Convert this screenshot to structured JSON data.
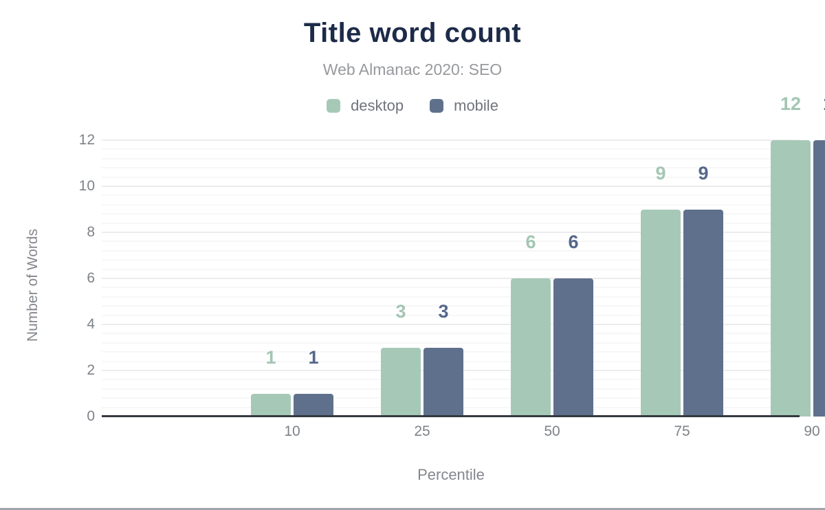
{
  "chart_data": {
    "type": "bar",
    "title": "Title word count",
    "subtitle": "Web Almanac 2020: SEO",
    "xlabel": "Percentile",
    "ylabel": "Number of Words",
    "categories": [
      "10",
      "25",
      "50",
      "75",
      "90"
    ],
    "series": [
      {
        "name": "desktop",
        "color": "#a6c9b7",
        "label_color": "#a3c6b3",
        "values": [
          1,
          3,
          6,
          9,
          12
        ]
      },
      {
        "name": "mobile",
        "color": "#5f708c",
        "label_color": "#55678b",
        "values": [
          1,
          3,
          6,
          9,
          12
        ]
      }
    ],
    "ylim": [
      0,
      12
    ],
    "yticks": [
      0,
      2,
      4,
      6,
      8,
      10,
      12
    ],
    "major_gridline_step": 2,
    "minor_gridline_step": 0.4,
    "grid": true,
    "legend_position": "top",
    "bar_value_labels_shown": true
  },
  "colors": {
    "title": "#1d2b49",
    "subtitle": "#97999d",
    "axis_text": "#83878d",
    "tick_text": "#7e8287",
    "legend_text": "#6f747b",
    "gridline_major": "#ececef",
    "gridline_minor": "#f7f7f9",
    "axis_line": "#34383f",
    "page_bottom_border": "#a2a4a9",
    "background": "#ffffff"
  }
}
